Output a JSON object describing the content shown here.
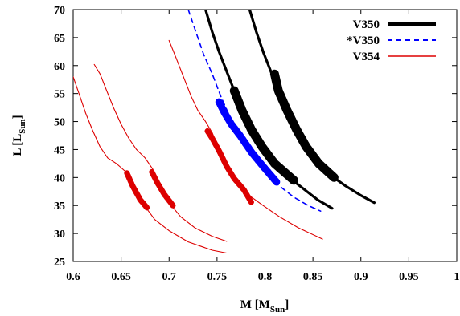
{
  "chart_data": {
    "type": "line",
    "xlabel": {
      "main": "M [M",
      "sub": "Sun",
      "close": "]"
    },
    "ylabel": {
      "main": "L [L",
      "sub": "Sun",
      "close": "]"
    },
    "xlim": [
      0.6,
      1.0
    ],
    "ylim": [
      25,
      70
    ],
    "xticks": [
      "0.6",
      "0.65",
      "0.7",
      "0.75",
      "0.8",
      "0.85",
      "0.9",
      "0.95",
      "1"
    ],
    "yticks": [
      "25",
      "30",
      "35",
      "40",
      "45",
      "50",
      "55",
      "60",
      "65",
      "70"
    ],
    "legend_position": "top-right",
    "series": [
      {
        "name": "V350",
        "color": "#000000",
        "style": "solid-thick",
        "curves": [
          {
            "points": [
              [
                0.738,
                70
              ],
              [
                0.745,
                66
              ],
              [
                0.752,
                62.5
              ],
              [
                0.76,
                59
              ],
              [
                0.768,
                55.5
              ],
              [
                0.776,
                52
              ],
              [
                0.786,
                48.5
              ],
              [
                0.797,
                45.5
              ],
              [
                0.81,
                42.5
              ],
              [
                0.825,
                40
              ],
              [
                0.84,
                38
              ],
              [
                0.855,
                36
              ],
              [
                0.87,
                34.5
              ]
            ],
            "highlight": [
              [
                0.768,
                55.5
              ],
              [
                0.776,
                52
              ],
              [
                0.786,
                48.5
              ],
              [
                0.797,
                45.5
              ],
              [
                0.81,
                42.5
              ],
              [
                0.83,
                39.5
              ]
            ]
          },
          {
            "points": [
              [
                0.784,
                70
              ],
              [
                0.791,
                66
              ],
              [
                0.798,
                62.5
              ],
              [
                0.806,
                59
              ],
              [
                0.814,
                55.5
              ],
              [
                0.823,
                52
              ],
              [
                0.833,
                48.5
              ],
              [
                0.843,
                45.5
              ],
              [
                0.856,
                42.5
              ],
              [
                0.87,
                40.2
              ],
              [
                0.884,
                38.5
              ],
              [
                0.9,
                36.8
              ],
              [
                0.914,
                35.5
              ]
            ],
            "highlight": [
              [
                0.81,
                58.5
              ],
              [
                0.814,
                55.5
              ],
              [
                0.823,
                52
              ],
              [
                0.833,
                48.5
              ],
              [
                0.843,
                45.5
              ],
              [
                0.856,
                42.5
              ],
              [
                0.872,
                40
              ]
            ]
          }
        ]
      },
      {
        "name": "*V350",
        "color": "#0000ff",
        "style": "dashed",
        "curves": [
          {
            "points": [
              [
                0.72,
                70
              ],
              [
                0.728,
                66
              ],
              [
                0.736,
                62
              ],
              [
                0.745,
                58.5
              ],
              [
                0.754,
                54.5
              ],
              [
                0.763,
                51
              ],
              [
                0.774,
                47.5
              ],
              [
                0.786,
                44
              ],
              [
                0.8,
                41
              ],
              [
                0.815,
                38.5
              ],
              [
                0.83,
                36.5
              ],
              [
                0.845,
                35
              ],
              [
                0.858,
                34
              ]
            ],
            "highlight": [
              [
                0.752,
                53.5
              ],
              [
                0.758,
                51.5
              ],
              [
                0.765,
                49.5
              ],
              [
                0.774,
                47.5
              ],
              [
                0.786,
                44.5
              ],
              [
                0.798,
                42
              ],
              [
                0.812,
                39.2
              ]
            ]
          }
        ]
      },
      {
        "name": "V354",
        "color": "#dd0000",
        "style": "solid-thin",
        "curves": [
          {
            "points": [
              [
                0.6,
                58
              ],
              [
                0.606,
                55
              ],
              [
                0.613,
                51.5
              ],
              [
                0.62,
                48.5
              ],
              [
                0.628,
                45.5
              ],
              [
                0.636,
                43.5
              ],
              [
                0.645,
                42.5
              ],
              [
                0.655,
                41
              ],
              [
                0.662,
                38.5
              ],
              [
                0.672,
                35.5
              ],
              [
                0.685,
                32.5
              ],
              [
                0.7,
                30.5
              ],
              [
                0.72,
                28.5
              ],
              [
                0.745,
                27
              ],
              [
                0.76,
                26.5
              ]
            ],
            "highlight": [
              [
                0.656,
                40.8
              ],
              [
                0.662,
                38.5
              ],
              [
                0.67,
                36
              ],
              [
                0.677,
                34.6
              ]
            ]
          },
          {
            "points": [
              [
                0.622,
                60.2
              ],
              [
                0.628,
                58.5
              ],
              [
                0.635,
                55.5
              ],
              [
                0.642,
                52.5
              ],
              [
                0.65,
                49.5
              ],
              [
                0.658,
                47
              ],
              [
                0.666,
                45
              ],
              [
                0.675,
                43.5
              ],
              [
                0.683,
                41.5
              ],
              [
                0.69,
                38.5
              ],
              [
                0.7,
                35.5
              ],
              [
                0.712,
                33
              ],
              [
                0.727,
                31
              ],
              [
                0.745,
                29.5
              ],
              [
                0.76,
                28.6
              ]
            ],
            "highlight": [
              [
                0.682,
                41
              ],
              [
                0.688,
                39
              ],
              [
                0.695,
                37
              ],
              [
                0.704,
                35
              ]
            ]
          },
          {
            "points": [
              [
                0.7,
                64.5
              ],
              [
                0.707,
                61.5
              ],
              [
                0.715,
                58
              ],
              [
                0.723,
                54.5
              ],
              [
                0.73,
                52
              ],
              [
                0.738,
                50
              ],
              [
                0.745,
                48
              ],
              [
                0.752,
                45
              ],
              [
                0.76,
                42
              ],
              [
                0.77,
                39.5
              ],
              [
                0.782,
                37
              ],
              [
                0.798,
                35
              ],
              [
                0.815,
                33
              ],
              [
                0.835,
                31
              ],
              [
                0.86,
                29
              ]
            ],
            "highlight": [
              [
                0.74,
                48.3
              ],
              [
                0.745,
                47
              ],
              [
                0.752,
                44.8
              ],
              [
                0.76,
                42
              ],
              [
                0.768,
                39.8
              ],
              [
                0.778,
                37.8
              ],
              [
                0.786,
                35.5
              ]
            ]
          }
        ]
      }
    ]
  }
}
